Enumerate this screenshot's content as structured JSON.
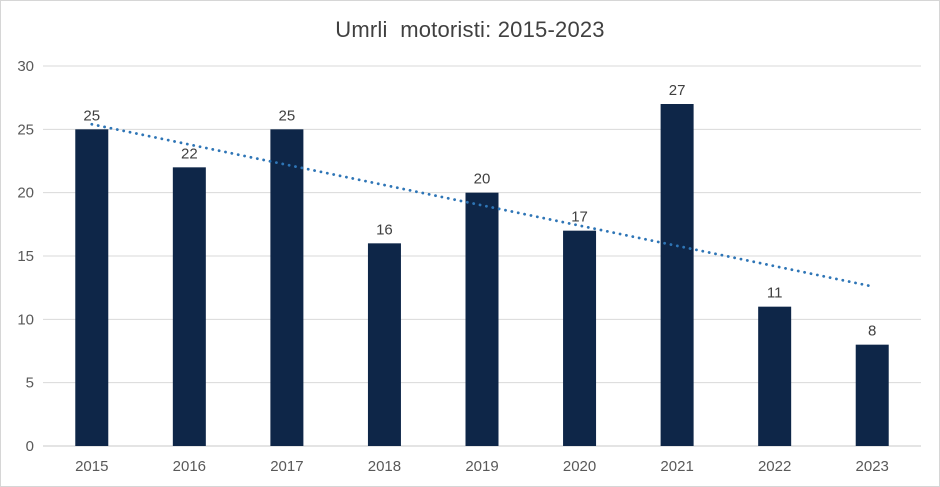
{
  "title": "Umrli  motoristi: 2015-2023",
  "colors": {
    "bar": "#0e2648",
    "trendline": "#2e75b6",
    "gridline": "#d9d9d9",
    "axis_line": "#c9c9c9",
    "title_text": "#404040",
    "tick_text": "#595959",
    "data_label_text": "#404040",
    "border": "#d6d6d6",
    "background": "#ffffff"
  },
  "chart_data": {
    "type": "bar",
    "title": "Umrli  motoristi: 2015-2023",
    "categories": [
      "2015",
      "2016",
      "2017",
      "2018",
      "2019",
      "2020",
      "2021",
      "2022",
      "2023"
    ],
    "values": [
      25,
      22,
      25,
      16,
      20,
      17,
      27,
      11,
      8
    ],
    "data_labels": [
      "25",
      "22",
      "25",
      "16",
      "20",
      "17",
      "27",
      "11",
      "8"
    ],
    "xlabel": "",
    "ylabel": "",
    "ylim": [
      0,
      30
    ],
    "y_ticks": [
      0,
      5,
      10,
      15,
      20,
      25,
      30
    ],
    "grid": true,
    "legend": "none",
    "trendline": {
      "type": "linear",
      "style": "dotted",
      "start_value": 25.4,
      "end_value": 12.6
    }
  }
}
